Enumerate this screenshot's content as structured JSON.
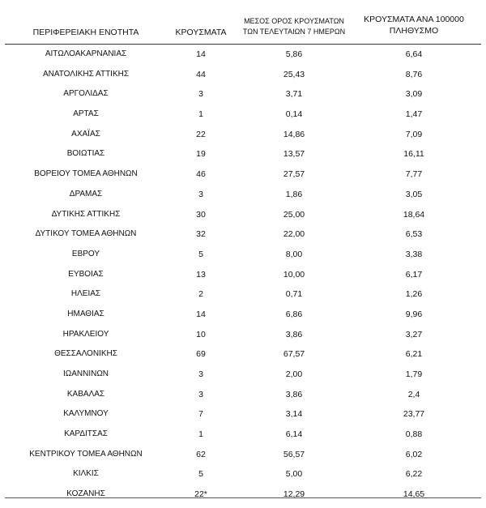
{
  "table": {
    "headers": {
      "region": "ΠΕΡΙΦΕΡΕΙΑΚΗ ΕΝΟΤΗΤΑ",
      "cases": "ΚΡΟΥΣΜΑΤΑ",
      "avg_line1": "ΜΕΣΟΣ ΟΡΟΣ ΚΡΟΥΣΜΑΤΩΝ",
      "avg_line2": "ΤΩΝ ΤΕΛΕΥΤΑΙΩΝ 7 ΗΜΕΡΩΝ",
      "per_line1": "ΚΡΟΥΣΜΑΤΑ ΑΝΑ 100000",
      "per_line2": "ΠΛΗΘΥΣΜΟ"
    },
    "rows": [
      {
        "region": "ΑΙΤΩΛΟΑΚΑΡΝΑΝΙΑΣ",
        "cases": "14",
        "avg7": "5,86",
        "per100k": "6,64"
      },
      {
        "region": "ΑΝΑΤΟΛΙΚΗΣ ΑΤΤΙΚΗΣ",
        "cases": "44",
        "avg7": "25,43",
        "per100k": "8,76"
      },
      {
        "region": "ΑΡΓΟΛΙΔΑΣ",
        "cases": "3",
        "avg7": "3,71",
        "per100k": "3,09"
      },
      {
        "region": "ΑΡΤΑΣ",
        "cases": "1",
        "avg7": "0,14",
        "per100k": "1,47"
      },
      {
        "region": "ΑΧΑΪΑΣ",
        "cases": "22",
        "avg7": "14,86",
        "per100k": "7,09"
      },
      {
        "region": "ΒΟΙΩΤΙΑΣ",
        "cases": "19",
        "avg7": "13,57",
        "per100k": "16,11"
      },
      {
        "region": "ΒΟΡΕΙΟΥ ΤΟΜΕΑ ΑΘΗΝΩΝ",
        "cases": "46",
        "avg7": "27,57",
        "per100k": "7,77"
      },
      {
        "region": "ΔΡΑΜΑΣ",
        "cases": "3",
        "avg7": "1,86",
        "per100k": "3,05"
      },
      {
        "region": "ΔΥΤΙΚΗΣ ΑΤΤΙΚΗΣ",
        "cases": "30",
        "avg7": "25,00",
        "per100k": "18,64"
      },
      {
        "region": "ΔΥΤΙΚΟΥ ΤΟΜΕΑ ΑΘΗΝΩΝ",
        "cases": "32",
        "avg7": "22,00",
        "per100k": "6,53"
      },
      {
        "region": "ΕΒΡΟΥ",
        "cases": "5",
        "avg7": "8,00",
        "per100k": "3,38"
      },
      {
        "region": "ΕΥΒΟΙΑΣ",
        "cases": "13",
        "avg7": "10,00",
        "per100k": "6,17"
      },
      {
        "region": "ΗΛΕΙΑΣ",
        "cases": "2",
        "avg7": "0,71",
        "per100k": "1,26"
      },
      {
        "region": "ΗΜΑΘΙΑΣ",
        "cases": "14",
        "avg7": "6,86",
        "per100k": "9,96"
      },
      {
        "region": "ΗΡΑΚΛΕΙΟΥ",
        "cases": "10",
        "avg7": "3,86",
        "per100k": "3,27"
      },
      {
        "region": "ΘΕΣΣΑΛΟΝΙΚΗΣ",
        "cases": "69",
        "avg7": "67,57",
        "per100k": "6,21"
      },
      {
        "region": "ΙΩΑΝΝΙΝΩΝ",
        "cases": "3",
        "avg7": "2,00",
        "per100k": "1,79"
      },
      {
        "region": "ΚΑΒΑΛΑΣ",
        "cases": "3",
        "avg7": "3,86",
        "per100k": "2,4"
      },
      {
        "region": "ΚΑΛΥΜΝΟΥ",
        "cases": "7",
        "avg7": "3,14",
        "per100k": "23,77"
      },
      {
        "region": "ΚΑΡΔΙΤΣΑΣ",
        "cases": "1",
        "avg7": "6,14",
        "per100k": "0,88"
      },
      {
        "region": "ΚΕΝΤΡΙΚΟΥ ΤΟΜΕΑ ΑΘΗΝΩΝ",
        "cases": "62",
        "avg7": "56,57",
        "per100k": "6,02"
      },
      {
        "region": "ΚΙΛΚΙΣ",
        "cases": "5",
        "avg7": "5,00",
        "per100k": "6,22"
      },
      {
        "region": "ΚΟΖΑΝΗΣ",
        "cases": "22*",
        "avg7": "12,29",
        "per100k": "14,65"
      }
    ]
  }
}
